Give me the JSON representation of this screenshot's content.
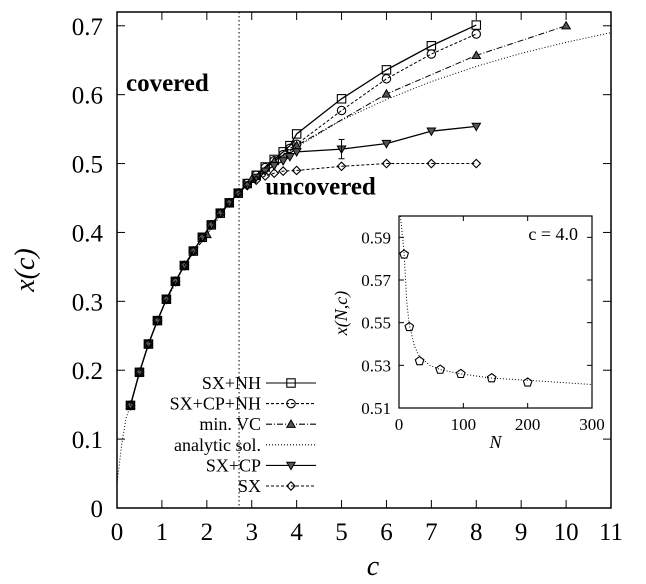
{
  "chart_data": [
    {
      "type": "line",
      "title": "",
      "xlabel": "c",
      "ylabel": "x(c)",
      "xlim": [
        0,
        11
      ],
      "ylim": [
        0,
        0.72
      ],
      "x_ticks": [
        "0",
        "1",
        "2",
        "3",
        "4",
        "5",
        "6",
        "7",
        "8",
        "9",
        "10",
        "11"
      ],
      "y_ticks": [
        "0",
        "0.1",
        "0.2",
        "0.3",
        "0.4",
        "0.5",
        "0.6",
        "0.7"
      ],
      "grid": false,
      "legend_position": "bottom-left",
      "vertical_line": {
        "x": 2.718,
        "style": "dotted"
      },
      "annotations": [
        {
          "text": "covered",
          "x": 0.2,
          "y": 0.605
        },
        {
          "text": "uncovered",
          "x": 3.3,
          "y": 0.455
        }
      ],
      "series": [
        {
          "name": "SX+NH",
          "marker": "square",
          "line": "solid",
          "points": [
            [
              0.3,
              0.149
            ],
            [
              0.5,
              0.197
            ],
            [
              0.7,
              0.238
            ],
            [
              0.9,
              0.272
            ],
            [
              1.1,
              0.303
            ],
            [
              1.3,
              0.329
            ],
            [
              1.5,
              0.352
            ],
            [
              1.7,
              0.373
            ],
            [
              1.9,
              0.393
            ],
            [
              2.1,
              0.411
            ],
            [
              2.3,
              0.428
            ],
            [
              2.5,
              0.443
            ],
            [
              2.7,
              0.457
            ],
            [
              2.9,
              0.471
            ],
            [
              3.1,
              0.483
            ],
            [
              3.3,
              0.495
            ],
            [
              3.5,
              0.506
            ],
            [
              3.7,
              0.517
            ],
            [
              3.85,
              0.526
            ],
            [
              4.0,
              0.543
            ],
            [
              5.0,
              0.594
            ],
            [
              6.0,
              0.636
            ],
            [
              7.0,
              0.671
            ],
            [
              8.0,
              0.701
            ]
          ]
        },
        {
          "name": "SX+CP+NH",
          "marker": "circle",
          "line": "dashed",
          "points": [
            [
              0.3,
              0.149
            ],
            [
              0.5,
              0.197
            ],
            [
              0.7,
              0.238
            ],
            [
              0.9,
              0.272
            ],
            [
              1.1,
              0.303
            ],
            [
              1.3,
              0.329
            ],
            [
              1.5,
              0.352
            ],
            [
              1.7,
              0.373
            ],
            [
              1.9,
              0.393
            ],
            [
              2.1,
              0.411
            ],
            [
              2.3,
              0.428
            ],
            [
              2.5,
              0.443
            ],
            [
              2.7,
              0.457
            ],
            [
              2.9,
              0.471
            ],
            [
              3.1,
              0.483
            ],
            [
              3.3,
              0.494
            ],
            [
              3.5,
              0.504
            ],
            [
              3.7,
              0.513
            ],
            [
              3.85,
              0.522
            ],
            [
              4.0,
              0.528
            ],
            [
              5.0,
              0.577
            ],
            [
              6.0,
              0.623
            ],
            [
              7.0,
              0.659
            ],
            [
              8.0,
              0.688
            ]
          ]
        },
        {
          "name": "min. VC",
          "marker": "triangle-up",
          "line": "dash-dot",
          "points": [
            [
              0.3,
              0.149
            ],
            [
              0.5,
              0.197
            ],
            [
              0.7,
              0.238
            ],
            [
              0.9,
              0.272
            ],
            [
              1.1,
              0.303
            ],
            [
              1.3,
              0.329
            ],
            [
              1.5,
              0.352
            ],
            [
              2.0,
              0.397
            ],
            [
              2.5,
              0.443
            ],
            [
              3.0,
              0.477
            ],
            [
              3.5,
              0.503
            ],
            [
              4.0,
              0.526
            ],
            [
              6.0,
              0.601
            ],
            [
              8.0,
              0.657
            ],
            [
              10.0,
              0.7
            ]
          ]
        },
        {
          "name": "analytic sol.",
          "marker": "none",
          "line": "dotted",
          "points": [
            [
              0.01,
              0.04
            ],
            [
              0.1,
              0.09
            ],
            [
              0.2,
              0.13
            ],
            [
              0.3,
              0.149
            ],
            [
              0.5,
              0.197
            ],
            [
              0.7,
              0.238
            ],
            [
              1.0,
              0.288
            ],
            [
              1.5,
              0.352
            ],
            [
              2.0,
              0.397
            ],
            [
              2.5,
              0.443
            ],
            [
              2.718,
              0.458
            ],
            [
              3.0,
              0.475
            ],
            [
              3.5,
              0.502
            ],
            [
              4.0,
              0.524
            ],
            [
              5.0,
              0.563
            ],
            [
              6.0,
              0.593
            ],
            [
              7.0,
              0.619
            ],
            [
              8.0,
              0.641
            ],
            [
              9.0,
              0.66
            ],
            [
              10.0,
              0.676
            ],
            [
              11.0,
              0.69
            ]
          ]
        },
        {
          "name": "SX+CP",
          "marker": "triangle-down",
          "line": "solid",
          "points": [
            [
              0.3,
              0.149
            ],
            [
              0.5,
              0.197
            ],
            [
              0.7,
              0.238
            ],
            [
              0.9,
              0.272
            ],
            [
              1.1,
              0.303
            ],
            [
              1.3,
              0.329
            ],
            [
              1.5,
              0.352
            ],
            [
              1.7,
              0.373
            ],
            [
              1.9,
              0.393
            ],
            [
              2.1,
              0.411
            ],
            [
              2.3,
              0.428
            ],
            [
              2.5,
              0.443
            ],
            [
              2.7,
              0.457
            ],
            [
              2.9,
              0.469
            ],
            [
              3.1,
              0.48
            ],
            [
              3.3,
              0.489
            ],
            [
              3.5,
              0.497
            ],
            [
              3.7,
              0.504
            ],
            [
              3.85,
              0.51
            ],
            [
              4.0,
              0.517
            ],
            [
              5.0,
              0.521
            ],
            [
              6.0,
              0.529
            ],
            [
              7.0,
              0.547
            ],
            [
              8.0,
              0.554
            ]
          ],
          "error_bar": {
            "x": 5.0,
            "low": 0.507,
            "high": 0.535
          }
        },
        {
          "name": "SX",
          "marker": "diamond",
          "line": "dashed",
          "points": [
            [
              0.3,
              0.149
            ],
            [
              0.5,
              0.197
            ],
            [
              0.7,
              0.238
            ],
            [
              0.9,
              0.272
            ],
            [
              1.1,
              0.303
            ],
            [
              1.3,
              0.329
            ],
            [
              1.5,
              0.352
            ],
            [
              1.7,
              0.373
            ],
            [
              1.9,
              0.393
            ],
            [
              2.1,
              0.411
            ],
            [
              2.3,
              0.428
            ],
            [
              2.5,
              0.443
            ],
            [
              2.7,
              0.457
            ],
            [
              2.9,
              0.468
            ],
            [
              3.1,
              0.476
            ],
            [
              3.3,
              0.482
            ],
            [
              3.5,
              0.486
            ],
            [
              3.7,
              0.489
            ],
            [
              4.0,
              0.49
            ],
            [
              5.0,
              0.496
            ],
            [
              6.0,
              0.5
            ],
            [
              7.0,
              0.5
            ],
            [
              8.0,
              0.5
            ]
          ]
        }
      ]
    },
    {
      "type": "scatter",
      "title": "",
      "xlabel": "N",
      "ylabel": "x(N,c)",
      "xlim": [
        0,
        300
      ],
      "ylim": [
        0.51,
        0.6
      ],
      "x_ticks": [
        "0",
        "100",
        "200",
        "300"
      ],
      "y_ticks": [
        "0.51",
        "0.53",
        "0.55",
        "0.57",
        "0.59"
      ],
      "annotation": "c = 4.0",
      "series": [
        {
          "name": "",
          "marker": "pentagon",
          "points": [
            [
              8,
              0.582
            ],
            [
              16,
              0.548
            ],
            [
              32,
              0.532
            ],
            [
              64,
              0.528
            ],
            [
              96,
              0.526
            ],
            [
              144,
              0.524
            ],
            [
              200,
              0.522
            ]
          ]
        }
      ],
      "fit": {
        "line": "dotted",
        "points": [
          [
            2,
            0.6
          ],
          [
            4,
            0.595
          ],
          [
            8,
            0.582
          ],
          [
            12,
            0.56
          ],
          [
            16,
            0.549
          ],
          [
            24,
            0.539
          ],
          [
            32,
            0.534
          ],
          [
            48,
            0.53
          ],
          [
            64,
            0.528
          ],
          [
            96,
            0.526
          ],
          [
            144,
            0.524
          ],
          [
            200,
            0.523
          ],
          [
            250,
            0.522
          ],
          [
            300,
            0.521
          ]
        ]
      }
    }
  ]
}
